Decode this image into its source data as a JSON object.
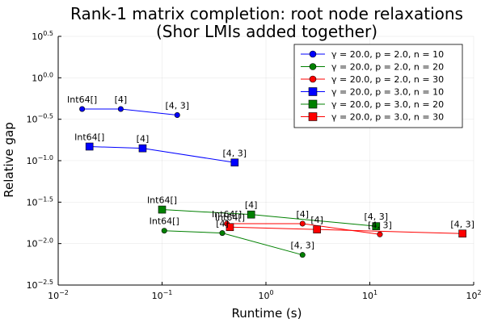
{
  "chart_data": {
    "type": "line",
    "title": [
      "Rank-1 matrix completion: root node relaxations",
      "(Shor LMIs added together)"
    ],
    "xlabel": "Runtime (s)",
    "ylabel": "Relative gap",
    "xscale": "log",
    "yscale": "log",
    "xlim": [
      0.01,
      100
    ],
    "ylim": [
      0.00316,
      3.162
    ],
    "grid": true,
    "legend_position": "top-right",
    "x_ticks": [
      {
        "value": 0.01,
        "base": "10",
        "exp": "−2"
      },
      {
        "value": 0.1,
        "base": "10",
        "exp": "−1"
      },
      {
        "value": 1,
        "base": "10",
        "exp": "0"
      },
      {
        "value": 10,
        "base": "10",
        "exp": "1"
      },
      {
        "value": 100,
        "base": "10",
        "exp": "2"
      }
    ],
    "y_ticks": [
      {
        "value": 0.00316,
        "base": "10",
        "exp": "−2.5"
      },
      {
        "value": 0.01,
        "base": "10",
        "exp": "−2.0"
      },
      {
        "value": 0.0316,
        "base": "10",
        "exp": "−1.5"
      },
      {
        "value": 0.1,
        "base": "10",
        "exp": "−1.0"
      },
      {
        "value": 0.316,
        "base": "10",
        "exp": "−0.5"
      },
      {
        "value": 1,
        "base": "10",
        "exp": "0.0"
      },
      {
        "value": 3.162,
        "base": "10",
        "exp": "0.5"
      }
    ],
    "series": [
      {
        "name": "γ = 20.0, p = 2.0, n = 10",
        "color": "#0000ff",
        "marker": "circle",
        "x": [
          0.017,
          0.04,
          0.14
        ],
        "y": [
          0.42,
          0.42,
          0.355
        ],
        "labels": [
          "Int64[]",
          "[4]",
          "[4, 3]"
        ]
      },
      {
        "name": "γ = 20.0, p = 2.0, n = 20",
        "color": "#008000",
        "marker": "circle",
        "x": [
          0.105,
          0.38,
          2.25
        ],
        "y": [
          0.0143,
          0.0134,
          0.0073
        ],
        "labels": [
          "Int64[]",
          "[4]",
          "[4, 3]"
        ]
      },
      {
        "name": "γ = 20.0, p = 2.0, n = 30",
        "color": "#ff0000",
        "marker": "circle",
        "x": [
          0.42,
          2.25,
          12.5
        ],
        "y": [
          0.0174,
          0.0174,
          0.0129
        ],
        "labels": [
          "Int64[]",
          "[4]",
          "[4, 3]"
        ]
      },
      {
        "name": "γ = 20.0, p = 3.0, n = 10",
        "color": "#0000ff",
        "marker": "square",
        "x": [
          0.02,
          0.065,
          0.5
        ],
        "y": [
          0.148,
          0.141,
          0.095
        ],
        "labels": [
          "Int64[]",
          "[4]",
          "[4, 3]"
        ]
      },
      {
        "name": "γ = 20.0, p = 3.0, n = 20",
        "color": "#008000",
        "marker": "square",
        "x": [
          0.1,
          0.72,
          11.5
        ],
        "y": [
          0.0257,
          0.0224,
          0.0162
        ],
        "labels": [
          "Int64[]",
          "[4]",
          "[4, 3]"
        ]
      },
      {
        "name": "γ = 20.0, p = 3.0, n = 30",
        "color": "#ff0000",
        "marker": "square",
        "x": [
          0.45,
          3.1,
          78
        ],
        "y": [
          0.0158,
          0.0148,
          0.0132
        ],
        "labels": [
          "Int64[]",
          "[4]",
          "[4, 3]"
        ]
      }
    ]
  }
}
